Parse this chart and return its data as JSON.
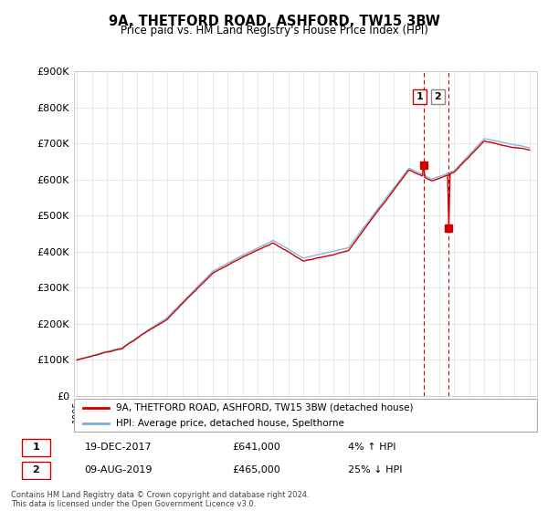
{
  "title": "9A, THETFORD ROAD, ASHFORD, TW15 3BW",
  "subtitle": "Price paid vs. HM Land Registry's House Price Index (HPI)",
  "ylim": [
    0,
    900000
  ],
  "yticks": [
    0,
    100000,
    200000,
    300000,
    400000,
    500000,
    600000,
    700000,
    800000,
    900000
  ],
  "ytick_labels": [
    "£0",
    "£100K",
    "£200K",
    "£300K",
    "£400K",
    "£500K",
    "£600K",
    "£700K",
    "£800K",
    "£900K"
  ],
  "hpi_color": "#7BAFD4",
  "price_color": "#cc0000",
  "sale1_x": 2017.97,
  "sale1_y": 641000,
  "sale1_label": "1",
  "sale2_x": 2019.62,
  "sale2_y": 465000,
  "sale2_label": "2",
  "legend_line1": "9A, THETFORD ROAD, ASHFORD, TW15 3BW (detached house)",
  "legend_line2": "HPI: Average price, detached house, Spelthorne",
  "table_row1": [
    "1",
    "19-DEC-2017",
    "£641,000",
    "4% ↑ HPI"
  ],
  "table_row2": [
    "2",
    "09-AUG-2019",
    "£465,000",
    "25% ↓ HPI"
  ],
  "footnote": "Contains HM Land Registry data © Crown copyright and database right 2024.\nThis data is licensed under the Open Government Licence v3.0.",
  "background_color": "#ffffff",
  "grid_color": "#dddddd",
  "xlim_left": 1994.8,
  "xlim_right": 2025.5
}
